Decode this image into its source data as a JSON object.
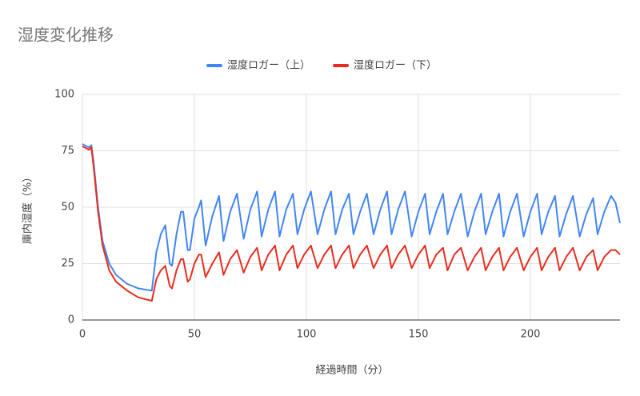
{
  "chart_data": {
    "type": "line",
    "title": "湿度変化推移",
    "x_label": "経過時間（分）",
    "y_label": "庫内湿度（%）",
    "x": [
      0,
      2,
      3,
      4,
      5,
      7,
      9,
      12,
      15,
      20,
      25,
      31,
      33,
      35,
      37,
      39,
      40,
      42,
      44,
      45,
      47,
      48,
      50,
      52,
      53,
      55,
      58,
      61,
      63,
      66,
      69,
      72,
      75,
      78,
      80,
      83,
      86,
      88,
      91,
      94,
      96,
      99,
      102,
      105,
      108,
      111,
      113,
      116,
      119,
      121,
      124,
      127,
      130,
      133,
      136,
      138,
      141,
      144,
      147,
      150,
      153,
      155,
      158,
      161,
      163,
      166,
      169,
      172,
      175,
      178,
      180,
      183,
      186,
      188,
      191,
      194,
      197,
      200,
      203,
      205,
      208,
      211,
      213,
      216,
      219,
      222,
      225,
      228,
      230,
      233,
      236,
      238,
      240
    ],
    "series": [
      {
        "name": "湿度ロガー（上）",
        "color": "#4285f4",
        "values": [
          78,
          77,
          76.5,
          77.5,
          70,
          50,
          35,
          25,
          20,
          16,
          14,
          13,
          30,
          38,
          42,
          25,
          24,
          38,
          48,
          48,
          31,
          31,
          45,
          50,
          53,
          33,
          46,
          55,
          35,
          48,
          56,
          36,
          49,
          57,
          37,
          49,
          57,
          37,
          49,
          56,
          38,
          49,
          57,
          38,
          49,
          57,
          38,
          49,
          56,
          38,
          48,
          56,
          38,
          49,
          57,
          38,
          49,
          57,
          37,
          48,
          56,
          38,
          48,
          56,
          38,
          48,
          56,
          37,
          48,
          56,
          38,
          48,
          56,
          37,
          48,
          56,
          37,
          48,
          56,
          38,
          48,
          55,
          37,
          47,
          55,
          37,
          47,
          54,
          38,
          48,
          55,
          52,
          43
        ]
      },
      {
        "name": "湿度ロガー（下）",
        "color": "#ea2c1e",
        "values": [
          77,
          76,
          75.5,
          76.5,
          68,
          48,
          33,
          22,
          17,
          13,
          10,
          8.5,
          18,
          22,
          24,
          15,
          14,
          22,
          27,
          27,
          17,
          18,
          25,
          29,
          29,
          19,
          25,
          30,
          20,
          27,
          31,
          21,
          28,
          32,
          22,
          29,
          33,
          22,
          29,
          33,
          23,
          29,
          33,
          23,
          29,
          33,
          23,
          29,
          33,
          23,
          29,
          33,
          23,
          29,
          33,
          23,
          29,
          33,
          23,
          29,
          33,
          23,
          29,
          32,
          22,
          29,
          32,
          22,
          28,
          32,
          22,
          28,
          32,
          22,
          28,
          32,
          22,
          28,
          32,
          22,
          28,
          32,
          22,
          28,
          32,
          22,
          28,
          31,
          22,
          28,
          31,
          31,
          29
        ]
      }
    ],
    "xlim": [
      0,
      240
    ],
    "xticks": [
      0,
      50,
      100,
      150,
      200
    ],
    "ylim": [
      0,
      100
    ],
    "yticks": [
      0,
      25,
      50,
      75,
      100
    ],
    "grid": true,
    "legend": "top"
  }
}
